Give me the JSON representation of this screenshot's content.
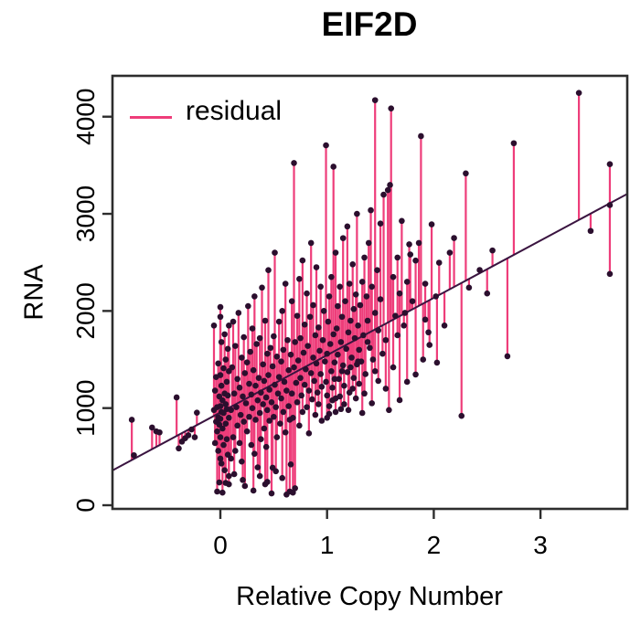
{
  "title": "EIF2D",
  "legend": {
    "label": "residual",
    "line_color": "#EE3D7A"
  },
  "axes": {
    "x_label": "Relative Copy Number",
    "y_label": "RNA"
  },
  "colors": {
    "residual": "#EE3D7A",
    "point": "#2B0F2E",
    "regression_line": "#3A1440",
    "frame": "#2d2d2d",
    "background": "#ffffff"
  },
  "chart_data": {
    "type": "scatter",
    "title": "EIF2D",
    "xlabel": "Relative Copy Number",
    "ylabel": "RNA",
    "xlim": [
      -1.01,
      3.81
    ],
    "ylim": [
      -38,
      4420
    ],
    "x_ticks": [
      0,
      1,
      2,
      3
    ],
    "y_ticks": [
      0,
      1000,
      2000,
      3000,
      4000
    ],
    "grid": false,
    "legend_position": "top-left",
    "regression": {
      "intercept": 955,
      "slope": 590
    },
    "series": [
      {
        "name": "residual",
        "role": "residual-stems",
        "color": "#EE3D7A"
      },
      {
        "name": "fit",
        "role": "regression-line",
        "color": "#3A1440"
      },
      {
        "name": "samples",
        "role": "points",
        "color": "#2B0F2E"
      }
    ],
    "points": [
      [
        -0.83,
        880
      ],
      [
        -0.81,
        515
      ],
      [
        -0.64,
        800
      ],
      [
        -0.6,
        760
      ],
      [
        -0.57,
        750
      ],
      [
        -0.41,
        1110
      ],
      [
        -0.39,
        585
      ],
      [
        -0.36,
        655
      ],
      [
        -0.33,
        690
      ],
      [
        -0.3,
        720
      ],
      [
        -0.27,
        780
      ],
      [
        -0.24,
        700
      ],
      [
        -0.22,
        953
      ],
      [
        -0.06,
        980
      ],
      [
        -0.06,
        1850
      ],
      [
        -0.05,
        1180
      ],
      [
        -0.05,
        640
      ],
      [
        -0.04,
        860
      ],
      [
        -0.04,
        1320
      ],
      [
        -0.03,
        760
      ],
      [
        -0.03,
        1010
      ],
      [
        -0.03,
        141
      ],
      [
        -0.02,
        1460
      ],
      [
        -0.02,
        560
      ],
      [
        -0.02,
        905
      ],
      [
        -0.01,
        1120
      ],
      [
        -0.01,
        830
      ],
      [
        -0.01,
        235
      ],
      [
        0,
        1020
      ],
      [
        0,
        700
      ],
      [
        0,
        1340
      ],
      [
        0,
        480
      ],
      [
        0,
        890
      ],
      [
        0,
        1940
      ],
      [
        0,
        2040
      ],
      [
        0.01,
        1230
      ],
      [
        0.01,
        960
      ],
      [
        0.01,
        430
      ],
      [
        0.01,
        1680
      ],
      [
        0.02,
        130
      ],
      [
        0.02,
        1080
      ],
      [
        0.02,
        790
      ],
      [
        0.03,
        1410
      ],
      [
        0.03,
        950
      ],
      [
        0.03,
        620
      ],
      [
        0.04,
        1150
      ],
      [
        0.04,
        1760
      ],
      [
        0.04,
        360
      ],
      [
        0.05,
        1040
      ],
      [
        0.05,
        840
      ],
      [
        0.05,
        1500
      ],
      [
        0.05,
        230
      ],
      [
        0.06,
        680
      ],
      [
        0.06,
        1270
      ],
      [
        0.06,
        990
      ],
      [
        0.07,
        1610
      ],
      [
        0.07,
        520
      ],
      [
        0.07,
        1130
      ],
      [
        0.08,
        900
      ],
      [
        0.08,
        1850
      ],
      [
        0.08,
        300
      ],
      [
        0.08,
        1380
      ],
      [
        0.08,
        216
      ],
      [
        0.1,
        980
      ],
      [
        0.1,
        480
      ],
      [
        0.11,
        1420
      ],
      [
        0.12,
        700
      ],
      [
        0.12,
        1890
      ],
      [
        0.13,
        1150
      ],
      [
        0.13,
        320
      ],
      [
        0.14,
        560
      ],
      [
        0.14,
        1640
      ],
      [
        0.15,
        1010
      ],
      [
        0.16,
        1300
      ],
      [
        0.16,
        820
      ],
      [
        0.17,
        1980
      ],
      [
        0.18,
        640
      ],
      [
        0.18,
        1210
      ],
      [
        0.19,
        930
      ],
      [
        0.2,
        1520
      ],
      [
        0.2,
        450
      ],
      [
        0.21,
        1120
      ],
      [
        0.21,
        260
      ],
      [
        0.22,
        1730
      ],
      [
        0.22,
        860
      ],
      [
        0.23,
        198
      ],
      [
        0.23,
        1360
      ],
      [
        0.24,
        1050
      ],
      [
        0.25,
        1470
      ],
      [
        0.25,
        760
      ],
      [
        0.26,
        2050
      ],
      [
        0.27,
        910
      ],
      [
        0.27,
        1250
      ],
      [
        0.28,
        1580
      ],
      [
        0.29,
        620
      ],
      [
        0.29,
        1140
      ],
      [
        0.3,
        1820
      ],
      [
        0.3,
        1000
      ],
      [
        0.31,
        151
      ],
      [
        0.31,
        1390
      ],
      [
        0.32,
        530
      ],
      [
        0.32,
        2150
      ],
      [
        0.33,
        880
      ],
      [
        0.33,
        1230
      ],
      [
        0.34,
        1660
      ],
      [
        0.35,
        1080
      ],
      [
        0.35,
        390
      ],
      [
        0.36,
        1310
      ],
      [
        0.37,
        950
      ],
      [
        0.37,
        1720
      ],
      [
        0.37,
        300
      ],
      [
        0.38,
        680
      ],
      [
        0.38,
        1160
      ],
      [
        0.39,
        2240
      ],
      [
        0.4,
        1040
      ],
      [
        0.4,
        1450
      ],
      [
        0.41,
        790
      ],
      [
        0.41,
        1280
      ],
      [
        0.42,
        1900
      ],
      [
        0.42,
        216
      ],
      [
        0.43,
        1110
      ],
      [
        0.43,
        600
      ],
      [
        0.44,
        1560
      ],
      [
        0.44,
        980
      ],
      [
        0.44,
        240
      ],
      [
        0.45,
        1340
      ],
      [
        0.45,
        2420
      ],
      [
        0.46,
        870
      ],
      [
        0.46,
        1190
      ],
      [
        0.47,
        1620
      ],
      [
        0.48,
        122
      ],
      [
        0.48,
        1060
      ],
      [
        0.49,
        1430
      ],
      [
        0.49,
        386
      ],
      [
        0.5,
        910
      ],
      [
        0.5,
        1740
      ],
      [
        0.51,
        1240
      ],
      [
        0.51,
        2600
      ],
      [
        0.52,
        1010
      ],
      [
        0.52,
        350
      ],
      [
        0.53,
        1530
      ],
      [
        0.53,
        700
      ],
      [
        0.54,
        1150
      ],
      [
        0.55,
        1890
      ],
      [
        0.55,
        1320
      ],
      [
        0.56,
        840
      ],
      [
        0.57,
        1480
      ],
      [
        0.57,
        1100
      ],
      [
        0.58,
        2000
      ],
      [
        0.58,
        280
      ],
      [
        0.59,
        960
      ],
      [
        0.59,
        1600
      ],
      [
        0.6,
        1270
      ],
      [
        0.61,
        750
      ],
      [
        0.61,
        2280
      ],
      [
        0.62,
        110
      ],
      [
        0.62,
        1180
      ],
      [
        0.63,
        1700
      ],
      [
        0.64,
        1020
      ],
      [
        0.64,
        1390
      ],
      [
        0.65,
        880
      ],
      [
        0.65,
        141
      ],
      [
        0.66,
        1550
      ],
      [
        0.66,
        420
      ],
      [
        0.67,
        1150
      ],
      [
        0.67,
        2100
      ],
      [
        0.68,
        900
      ],
      [
        0.68,
        130
      ],
      [
        0.69,
        3523
      ],
      [
        0.69,
        1420
      ],
      [
        0.7,
        1680
      ],
      [
        0.7,
        175
      ],
      [
        0.71,
        1260
      ],
      [
        0.72,
        1950
      ],
      [
        0.72,
        1060
      ],
      [
        0.73,
        1490
      ],
      [
        0.74,
        820
      ],
      [
        0.74,
        2330
      ],
      [
        0.75,
        1310
      ],
      [
        0.75,
        1720
      ],
      [
        0.76,
        1130
      ],
      [
        0.77,
        2520
      ],
      [
        0.77,
        960
      ],
      [
        0.78,
        1570
      ],
      [
        0.79,
        1240
      ],
      [
        0.79,
        1860
      ],
      [
        0.8,
        1400
      ],
      [
        0.81,
        1010
      ],
      [
        0.81,
        2180
      ],
      [
        0.82,
        1640
      ],
      [
        0.83,
        1180
      ],
      [
        0.83,
        740
      ],
      [
        0.84,
        1940
      ],
      [
        0.85,
        1360
      ],
      [
        0.85,
        2700
      ],
      [
        0.86,
        1090
      ],
      [
        0.87,
        1520
      ],
      [
        0.87,
        2060
      ],
      [
        0.88,
        1280
      ],
      [
        0.89,
        930
      ],
      [
        0.89,
        1750
      ],
      [
        0.9,
        1460
      ],
      [
        0.9,
        2450
      ],
      [
        0.91,
        1160
      ],
      [
        0.92,
        1830
      ],
      [
        0.92,
        1040
      ],
      [
        0.93,
        1590
      ],
      [
        0.94,
        1350
      ],
      [
        0.94,
        2250
      ],
      [
        0.95,
        1220
      ],
      [
        0.95,
        870
      ],
      [
        0.96,
        1700
      ],
      [
        0.97,
        2000
      ],
      [
        0.98,
        1480
      ],
      [
        0.99,
        3705
      ],
      [
        0.99,
        1270
      ],
      [
        1.0,
        1560
      ],
      [
        1.0,
        1130
      ],
      [
        1.0,
        900
      ],
      [
        1.01,
        1890
      ],
      [
        1.02,
        2150
      ],
      [
        1.02,
        1020
      ],
      [
        1.02,
        940
      ],
      [
        1.03,
        1660
      ],
      [
        1.04,
        1380
      ],
      [
        1.04,
        2350
      ],
      [
        1.05,
        1210
      ],
      [
        1.05,
        1080
      ],
      [
        1.06,
        3485
      ],
      [
        1.06,
        1760
      ],
      [
        1.07,
        1470
      ],
      [
        1.07,
        1300
      ],
      [
        1.08,
        2600
      ],
      [
        1.08,
        1100
      ],
      [
        1.08,
        960
      ],
      [
        1.09,
        1820
      ],
      [
        1.1,
        1550
      ],
      [
        1.1,
        2050
      ],
      [
        1.11,
        1300
      ],
      [
        1.12,
        2250
      ],
      [
        1.12,
        1120
      ],
      [
        1.13,
        1680
      ],
      [
        1.13,
        990
      ],
      [
        1.14,
        1940
      ],
      [
        1.14,
        1380
      ],
      [
        1.15,
        1440
      ],
      [
        1.15,
        2750
      ],
      [
        1.16,
        1230
      ],
      [
        1.16,
        1040
      ],
      [
        1.17,
        2100
      ],
      [
        1.18,
        1610
      ],
      [
        1.19,
        1370
      ],
      [
        1.19,
        2870
      ],
      [
        1.2,
        1780
      ],
      [
        1.2,
        980
      ],
      [
        1.21,
        1160
      ],
      [
        1.21,
        2280
      ],
      [
        1.22,
        1900
      ],
      [
        1.22,
        1420
      ],
      [
        1.23,
        1520
      ],
      [
        1.24,
        2480
      ],
      [
        1.24,
        1200
      ],
      [
        1.25,
        1310
      ],
      [
        1.25,
        2020
      ],
      [
        1.26,
        1720
      ],
      [
        1.27,
        2170
      ],
      [
        1.27,
        1100
      ],
      [
        1.28,
        1450
      ],
      [
        1.28,
        3000
      ],
      [
        1.29,
        1850
      ],
      [
        1.29,
        1480
      ],
      [
        1.3,
        1600
      ],
      [
        1.3,
        1250
      ],
      [
        1.31,
        2060
      ],
      [
        1.32,
        1480
      ],
      [
        1.33,
        2300
      ],
      [
        1.33,
        950
      ],
      [
        1.34,
        1750
      ],
      [
        1.35,
        2550
      ],
      [
        1.35,
        1150
      ],
      [
        1.36,
        1350
      ],
      [
        1.37,
        2150
      ],
      [
        1.38,
        1900
      ],
      [
        1.38,
        1680
      ],
      [
        1.39,
        2700
      ],
      [
        1.4,
        1620
      ],
      [
        1.41,
        3037
      ],
      [
        1.42,
        2250
      ],
      [
        1.42,
        1050
      ],
      [
        1.43,
        1500
      ],
      [
        1.45,
        4170
      ],
      [
        1.45,
        1980
      ],
      [
        1.45,
        1380
      ],
      [
        1.47,
        2420
      ],
      [
        1.48,
        1800
      ],
      [
        1.48,
        1280
      ],
      [
        1.5,
        2900
      ],
      [
        1.5,
        2120
      ],
      [
        1.52,
        1560
      ],
      [
        1.53,
        3197
      ],
      [
        1.55,
        1700
      ],
      [
        1.55,
        1200
      ],
      [
        1.57,
        3244
      ],
      [
        1.58,
        980
      ],
      [
        1.59,
        3297
      ],
      [
        1.6,
        4085
      ],
      [
        1.62,
        2350
      ],
      [
        1.62,
        1420
      ],
      [
        1.64,
        1950
      ],
      [
        1.66,
        2550
      ],
      [
        1.66,
        1750
      ],
      [
        1.68,
        2180
      ],
      [
        1.68,
        1082
      ],
      [
        1.7,
        2927
      ],
      [
        1.72,
        1850
      ],
      [
        1.73,
        1980
      ],
      [
        1.75,
        2300
      ],
      [
        1.75,
        1270
      ],
      [
        1.77,
        2686
      ],
      [
        1.78,
        2581
      ],
      [
        1.8,
        2100
      ],
      [
        1.83,
        2519
      ],
      [
        1.83,
        1346
      ],
      [
        1.86,
        2700
      ],
      [
        1.88,
        3800
      ],
      [
        1.9,
        1500
      ],
      [
        1.92,
        2280
      ],
      [
        1.92,
        1911
      ],
      [
        1.95,
        1780
      ],
      [
        1.96,
        1650
      ],
      [
        1.98,
        2892
      ],
      [
        2.02,
        2150
      ],
      [
        2.03,
        1468
      ],
      [
        2.05,
        2497
      ],
      [
        2.1,
        1850
      ],
      [
        2.15,
        2600
      ],
      [
        2.19,
        2751
      ],
      [
        2.26,
        920
      ],
      [
        2.3,
        3416
      ],
      [
        2.33,
        2240
      ],
      [
        2.43,
        2422
      ],
      [
        2.5,
        2180
      ],
      [
        2.55,
        2623
      ],
      [
        2.69,
        1534
      ],
      [
        2.75,
        3727
      ],
      [
        3.36,
        4245
      ],
      [
        3.47,
        2824
      ],
      [
        3.65,
        3511
      ],
      [
        3.65,
        3090
      ],
      [
        3.65,
        2381
      ]
    ]
  }
}
